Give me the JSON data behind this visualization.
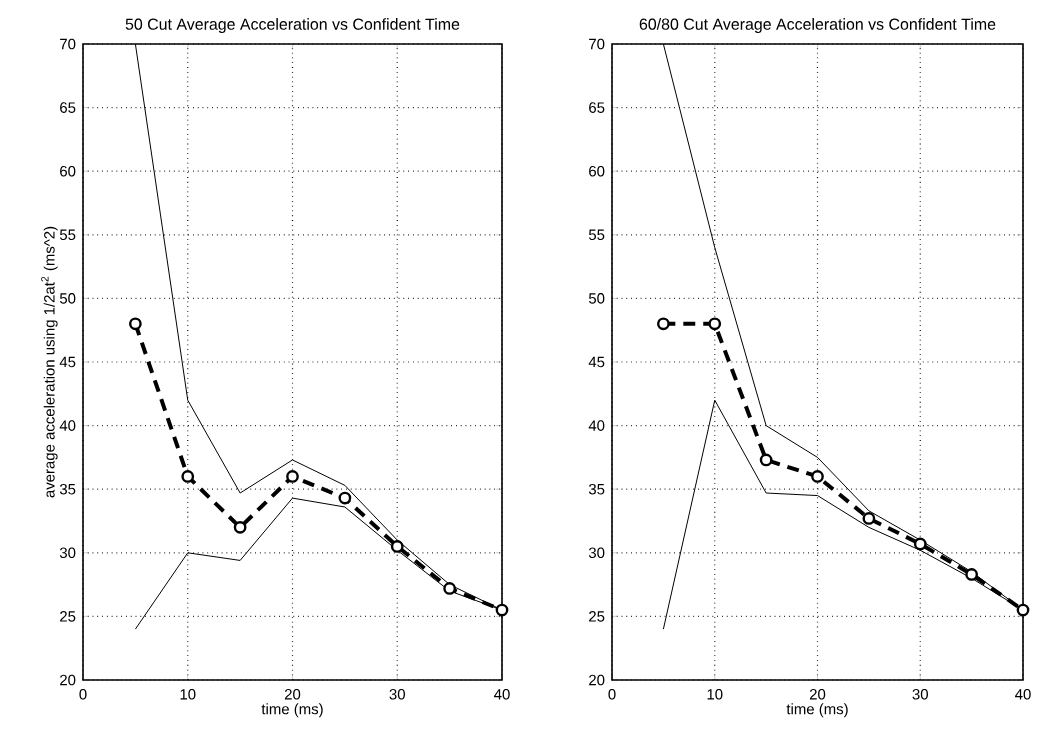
{
  "chart_data": [
    {
      "type": "line",
      "title": "50 Cut Average Acceleration vs Confident Time",
      "xlabel": "time (ms)",
      "ylabel": "average acceleration using 1/2at$^{2}$ (ms^2)",
      "x": [
        5,
        10,
        15,
        20,
        25,
        30,
        35,
        40
      ],
      "xlim": [
        0,
        40
      ],
      "ylim": [
        20,
        70
      ],
      "xticks": [
        0,
        10,
        20,
        30,
        40
      ],
      "yticks": [
        20,
        25,
        30,
        35,
        40,
        45,
        50,
        55,
        60,
        65,
        70
      ],
      "grid": true,
      "series": [
        {
          "color": "#000000",
          "line_style": "solid",
          "marker": "none",
          "values": [
            70,
            42,
            34.7,
            37.3,
            35.3,
            31,
            27.5,
            25.5
          ]
        },
        {
          "color": "#000000",
          "line_style": "solid",
          "marker": "none",
          "values": [
            24,
            30,
            29.4,
            34.3,
            33.6,
            30.2,
            27,
            25.5
          ]
        },
        {
          "color": "#000000",
          "line_style": "dashed",
          "marker": "circle",
          "values": [
            48,
            36,
            32,
            36,
            34.3,
            30.5,
            27.2,
            25.5
          ]
        }
      ]
    },
    {
      "type": "line",
      "title": "60/80 Cut Average Acceleration vs Confident Time",
      "xlabel": "time (ms)",
      "x": [
        5,
        10,
        15,
        20,
        25,
        30,
        35,
        40
      ],
      "xlim": [
        0,
        40
      ],
      "ylim": [
        20,
        70
      ],
      "xticks": [
        0,
        10,
        20,
        30,
        40
      ],
      "yticks": [
        20,
        25,
        30,
        35,
        40,
        45,
        50,
        55,
        60,
        65,
        70
      ],
      "grid": true,
      "series": [
        {
          "color": "#000000",
          "line_style": "solid",
          "marker": "none",
          "values": [
            70,
            54,
            40,
            37.5,
            33.3,
            31,
            28.5,
            25.5
          ]
        },
        {
          "color": "#000000",
          "line_style": "solid",
          "marker": "none",
          "values": [
            24,
            42,
            34.7,
            34.5,
            32,
            30.2,
            28,
            25.5
          ]
        },
        {
          "color": "#000000",
          "line_style": "dashed",
          "marker": "circle",
          "values": [
            48,
            48,
            37.3,
            36,
            32.7,
            30.7,
            28.3,
            25.5
          ]
        }
      ]
    }
  ]
}
